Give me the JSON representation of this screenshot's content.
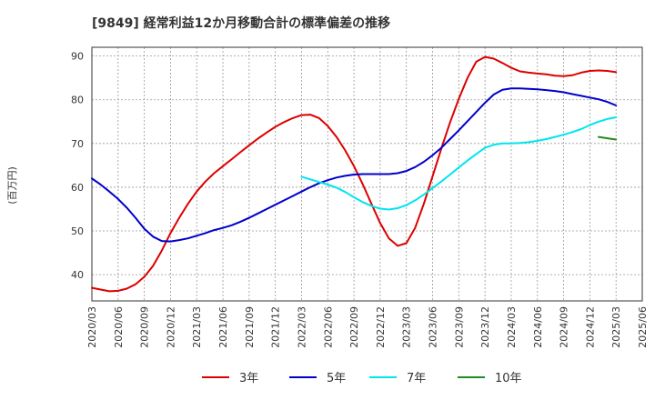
{
  "chart_data": {
    "type": "line",
    "title": "[9849]  経常利益12か月移動合計の標準偏差の推移",
    "ylabel": "(百万円)",
    "xlabel": "",
    "ylim": [
      34,
      92
    ],
    "yticks": [
      40,
      50,
      60,
      70,
      80,
      90
    ],
    "xlim": [
      "2020-03",
      "2025-06"
    ],
    "xticks": [
      "2020/03",
      "2020/06",
      "2020/09",
      "2020/12",
      "2021/03",
      "2021/06",
      "2021/09",
      "2021/12",
      "2022/03",
      "2022/06",
      "2022/09",
      "2022/12",
      "2023/03",
      "2023/06",
      "2023/09",
      "2023/12",
      "2024/03",
      "2024/06",
      "2024/09",
      "2024/12",
      "2025/03",
      "2025/06"
    ],
    "grid": true,
    "legend_position": "bottom",
    "series": [
      {
        "name": "3年",
        "color": "#dd0000",
        "points": [
          [
            "2020-03",
            37.0
          ],
          [
            "2020-04",
            36.6
          ],
          [
            "2020-05",
            36.2
          ],
          [
            "2020-06",
            36.3
          ],
          [
            "2020-07",
            36.8
          ],
          [
            "2020-08",
            37.8
          ],
          [
            "2020-09",
            39.5
          ],
          [
            "2020-10",
            42.0
          ],
          [
            "2020-11",
            45.5
          ],
          [
            "2020-12",
            49.5
          ],
          [
            "2021-01",
            53.0
          ],
          [
            "2021-02",
            56.2
          ],
          [
            "2021-03",
            59.0
          ],
          [
            "2021-04",
            61.3
          ],
          [
            "2021-05",
            63.2
          ],
          [
            "2021-06",
            64.8
          ],
          [
            "2021-07",
            66.4
          ],
          [
            "2021-08",
            68.0
          ],
          [
            "2021-09",
            69.6
          ],
          [
            "2021-10",
            71.1
          ],
          [
            "2021-11",
            72.5
          ],
          [
            "2021-12",
            73.8
          ],
          [
            "2022-01",
            74.9
          ],
          [
            "2022-02",
            75.8
          ],
          [
            "2022-03",
            76.5
          ],
          [
            "2022-04",
            76.6
          ],
          [
            "2022-05",
            75.8
          ],
          [
            "2022-06",
            74.0
          ],
          [
            "2022-07",
            71.5
          ],
          [
            "2022-08",
            68.4
          ],
          [
            "2022-09",
            64.8
          ],
          [
            "2022-10",
            60.7
          ],
          [
            "2022-11",
            56.2
          ],
          [
            "2022-12",
            51.8
          ],
          [
            "2023-01",
            48.3
          ],
          [
            "2023-02",
            46.6
          ],
          [
            "2023-03",
            47.2
          ],
          [
            "2023-04",
            50.7
          ],
          [
            "2023-05",
            56.2
          ],
          [
            "2023-06",
            62.5
          ],
          [
            "2023-07",
            68.8
          ],
          [
            "2023-08",
            74.8
          ],
          [
            "2023-09",
            80.2
          ],
          [
            "2023-10",
            85.0
          ],
          [
            "2023-11",
            88.7
          ],
          [
            "2023-12",
            89.8
          ],
          [
            "2024-01",
            89.4
          ],
          [
            "2024-02",
            88.4
          ],
          [
            "2024-03",
            87.3
          ],
          [
            "2024-04",
            86.5
          ],
          [
            "2024-05",
            86.2
          ],
          [
            "2024-06",
            86.0
          ],
          [
            "2024-07",
            85.8
          ],
          [
            "2024-08",
            85.5
          ],
          [
            "2024-09",
            85.4
          ],
          [
            "2024-10",
            85.6
          ],
          [
            "2024-11",
            86.2
          ],
          [
            "2024-12",
            86.6
          ],
          [
            "2025-01",
            86.7
          ],
          [
            "2025-02",
            86.6
          ],
          [
            "2025-03",
            86.3
          ]
        ]
      },
      {
        "name": "5年",
        "color": "#0000cc",
        "points": [
          [
            "2020-03",
            62.0
          ],
          [
            "2020-04",
            60.6
          ],
          [
            "2020-05",
            59.0
          ],
          [
            "2020-06",
            57.3
          ],
          [
            "2020-07",
            55.3
          ],
          [
            "2020-08",
            53.0
          ],
          [
            "2020-09",
            50.5
          ],
          [
            "2020-10",
            48.7
          ],
          [
            "2020-11",
            47.7
          ],
          [
            "2020-12",
            47.6
          ],
          [
            "2021-01",
            47.9
          ],
          [
            "2021-02",
            48.3
          ],
          [
            "2021-03",
            48.9
          ],
          [
            "2021-04",
            49.5
          ],
          [
            "2021-05",
            50.2
          ],
          [
            "2021-06",
            50.7
          ],
          [
            "2021-07",
            51.3
          ],
          [
            "2021-08",
            52.1
          ],
          [
            "2021-09",
            53.0
          ],
          [
            "2021-10",
            54.0
          ],
          [
            "2021-11",
            55.0
          ],
          [
            "2021-12",
            56.0
          ],
          [
            "2022-01",
            57.0
          ],
          [
            "2022-02",
            58.0
          ],
          [
            "2022-03",
            59.0
          ],
          [
            "2022-04",
            60.0
          ],
          [
            "2022-05",
            60.9
          ],
          [
            "2022-06",
            61.6
          ],
          [
            "2022-07",
            62.2
          ],
          [
            "2022-08",
            62.6
          ],
          [
            "2022-09",
            62.9
          ],
          [
            "2022-10",
            63.0
          ],
          [
            "2022-11",
            63.0
          ],
          [
            "2022-12",
            63.0
          ],
          [
            "2023-01",
            63.0
          ],
          [
            "2023-02",
            63.2
          ],
          [
            "2023-03",
            63.7
          ],
          [
            "2023-04",
            64.6
          ],
          [
            "2023-05",
            65.8
          ],
          [
            "2023-06",
            67.3
          ],
          [
            "2023-07",
            69.0
          ],
          [
            "2023-08",
            71.0
          ],
          [
            "2023-09",
            73.0
          ],
          [
            "2023-10",
            75.1
          ],
          [
            "2023-11",
            77.2
          ],
          [
            "2023-12",
            79.3
          ],
          [
            "2024-01",
            81.2
          ],
          [
            "2024-02",
            82.3
          ],
          [
            "2024-03",
            82.6
          ],
          [
            "2024-04",
            82.6
          ],
          [
            "2024-05",
            82.5
          ],
          [
            "2024-06",
            82.4
          ],
          [
            "2024-07",
            82.2
          ],
          [
            "2024-08",
            82.0
          ],
          [
            "2024-09",
            81.7
          ],
          [
            "2024-10",
            81.3
          ],
          [
            "2024-11",
            80.9
          ],
          [
            "2024-12",
            80.5
          ],
          [
            "2025-01",
            80.1
          ],
          [
            "2025-02",
            79.5
          ],
          [
            "2025-03",
            78.7
          ]
        ]
      },
      {
        "name": "7年",
        "color": "#00e5ee",
        "points": [
          [
            "2022-03",
            62.4
          ],
          [
            "2022-04",
            61.8
          ],
          [
            "2022-05",
            61.2
          ],
          [
            "2022-06",
            60.6
          ],
          [
            "2022-07",
            59.9
          ],
          [
            "2022-08",
            58.9
          ],
          [
            "2022-09",
            57.7
          ],
          [
            "2022-10",
            56.6
          ],
          [
            "2022-11",
            55.7
          ],
          [
            "2022-12",
            55.1
          ],
          [
            "2023-01",
            54.9
          ],
          [
            "2023-02",
            55.2
          ],
          [
            "2023-03",
            55.9
          ],
          [
            "2023-04",
            57.0
          ],
          [
            "2023-05",
            58.3
          ],
          [
            "2023-06",
            59.8
          ],
          [
            "2023-07",
            61.3
          ],
          [
            "2023-08",
            62.9
          ],
          [
            "2023-09",
            64.5
          ],
          [
            "2023-10",
            66.1
          ],
          [
            "2023-11",
            67.6
          ],
          [
            "2023-12",
            69.0
          ],
          [
            "2024-01",
            69.7
          ],
          [
            "2024-02",
            70.0
          ],
          [
            "2024-03",
            70.0
          ],
          [
            "2024-04",
            70.1
          ],
          [
            "2024-05",
            70.3
          ],
          [
            "2024-06",
            70.6
          ],
          [
            "2024-07",
            71.0
          ],
          [
            "2024-08",
            71.5
          ],
          [
            "2024-09",
            72.0
          ],
          [
            "2024-10",
            72.6
          ],
          [
            "2024-11",
            73.3
          ],
          [
            "2024-12",
            74.2
          ],
          [
            "2025-01",
            75.0
          ],
          [
            "2025-02",
            75.6
          ],
          [
            "2025-03",
            76.0
          ]
        ]
      },
      {
        "name": "10年",
        "color": "#228b22",
        "points": [
          [
            "2025-01",
            71.5
          ],
          [
            "2025-02",
            71.2
          ],
          [
            "2025-03",
            70.9
          ]
        ]
      }
    ]
  }
}
